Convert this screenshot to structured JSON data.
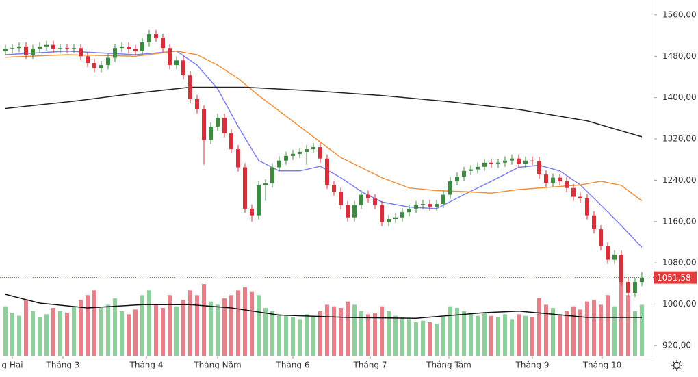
{
  "chart_data": {
    "type": "candlestick",
    "up_color": "#3d8b40",
    "down_color": "#d7303a",
    "volume_up_color": "#8fcf9c",
    "volume_down_color": "#e8808a",
    "x": [
      0,
      1,
      2,
      3,
      4,
      5,
      6,
      7,
      8,
      9,
      10,
      11,
      12,
      13,
      14,
      15,
      16,
      17,
      18,
      19,
      20,
      21,
      22,
      23,
      24,
      25,
      26,
      27,
      28,
      29,
      30,
      31,
      32,
      33,
      34,
      35,
      36,
      37,
      38,
      39,
      40,
      41,
      42,
      43,
      44,
      45,
      46,
      47,
      48,
      49,
      50,
      51,
      52,
      53,
      54,
      55,
      56,
      57,
      58,
      59,
      60,
      61,
      62,
      63,
      64,
      65,
      66,
      67,
      68,
      69,
      70,
      71,
      72,
      73,
      74,
      75,
      76,
      77,
      78,
      79,
      80,
      81,
      82,
      83,
      84,
      85,
      86,
      87,
      88,
      89,
      90,
      91,
      92,
      93
    ],
    "open": [
      1490,
      1494,
      1496,
      1499,
      1483,
      1494,
      1499,
      1502,
      1494,
      1496,
      1494,
      1496,
      1480,
      1467,
      1457,
      1463,
      1477,
      1496,
      1499,
      1494,
      1490,
      1507,
      1523,
      1516,
      1496,
      1463,
      1472,
      1443,
      1397,
      1377,
      1318,
      1344,
      1361,
      1331,
      1300,
      1265,
      1185,
      1172,
      1231,
      1234,
      1265,
      1278,
      1287,
      1291,
      1295,
      1300,
      1304,
      1282,
      1231,
      1218,
      1192,
      1168,
      1192,
      1212,
      1205,
      1192,
      1159,
      1165,
      1168,
      1178,
      1185,
      1192,
      1194,
      1189,
      1194,
      1212,
      1238,
      1247,
      1258,
      1261,
      1266,
      1274,
      1272,
      1274,
      1278,
      1282,
      1272,
      1278,
      1277,
      1251,
      1235,
      1245,
      1238,
      1225,
      1208,
      1205,
      1172,
      1145,
      1112,
      1086,
      1096,
      1043,
      1022,
      1043
    ],
    "high": [
      1502,
      1504,
      1507,
      1507,
      1502,
      1507,
      1510,
      1510,
      1504,
      1504,
      1504,
      1504,
      1488,
      1475,
      1471,
      1485,
      1504,
      1507,
      1507,
      1502,
      1515,
      1531,
      1531,
      1524,
      1504,
      1480,
      1480,
      1451,
      1405,
      1385,
      1352,
      1369,
      1369,
      1339,
      1308,
      1273,
      1193,
      1239,
      1242,
      1273,
      1286,
      1295,
      1299,
      1303,
      1308,
      1312,
      1312,
      1290,
      1239,
      1226,
      1200,
      1200,
      1220,
      1220,
      1213,
      1200,
      1173,
      1176,
      1186,
      1193,
      1200,
      1202,
      1202,
      1202,
      1220,
      1246,
      1255,
      1266,
      1269,
      1274,
      1282,
      1282,
      1282,
      1286,
      1290,
      1290,
      1286,
      1286,
      1285,
      1259,
      1253,
      1253,
      1246,
      1233,
      1216,
      1213,
      1180,
      1153,
      1120,
      1104,
      1104,
      1051,
      1051,
      1062
    ],
    "low": [
      1482,
      1486,
      1488,
      1475,
      1475,
      1486,
      1491,
      1486,
      1486,
      1486,
      1486,
      1472,
      1459,
      1449,
      1449,
      1455,
      1469,
      1488,
      1486,
      1482,
      1482,
      1499,
      1508,
      1488,
      1455,
      1455,
      1435,
      1389,
      1369,
      1270,
      1310,
      1336,
      1323,
      1292,
      1257,
      1177,
      1160,
      1164,
      1200,
      1226,
      1257,
      1270,
      1279,
      1283,
      1270,
      1292,
      1274,
      1223,
      1210,
      1184,
      1160,
      1160,
      1184,
      1197,
      1184,
      1151,
      1151,
      1157,
      1160,
      1170,
      1177,
      1184,
      1181,
      1181,
      1186,
      1204,
      1230,
      1239,
      1250,
      1253,
      1258,
      1264,
      1264,
      1266,
      1270,
      1264,
      1264,
      1269,
      1243,
      1227,
      1227,
      1230,
      1217,
      1200,
      1197,
      1164,
      1137,
      1104,
      1078,
      1078,
      1035,
      1014,
      1014,
      1035
    ],
    "close": [
      1494,
      1496,
      1499,
      1483,
      1494,
      1499,
      1502,
      1494,
      1496,
      1494,
      1496,
      1480,
      1467,
      1457,
      1463,
      1477,
      1496,
      1499,
      1494,
      1490,
      1507,
      1523,
      1516,
      1496,
      1463,
      1472,
      1443,
      1397,
      1377,
      1318,
      1344,
      1361,
      1331,
      1300,
      1265,
      1185,
      1172,
      1231,
      1234,
      1265,
      1278,
      1287,
      1291,
      1295,
      1300,
      1304,
      1282,
      1231,
      1218,
      1192,
      1168,
      1192,
      1212,
      1205,
      1192,
      1159,
      1165,
      1168,
      1178,
      1185,
      1192,
      1194,
      1189,
      1194,
      1212,
      1238,
      1247,
      1258,
      1261,
      1266,
      1274,
      1272,
      1274,
      1278,
      1282,
      1272,
      1278,
      1277,
      1251,
      1235,
      1245,
      1238,
      1225,
      1208,
      1205,
      1172,
      1145,
      1112,
      1086,
      1096,
      1043,
      1022,
      1043,
      1051.58
    ],
    "volume": [
      620,
      540,
      500,
      700,
      560,
      480,
      520,
      600,
      560,
      540,
      620,
      700,
      760,
      820,
      600,
      640,
      720,
      560,
      520,
      580,
      760,
      820,
      640,
      600,
      760,
      620,
      700,
      820,
      760,
      900,
      680,
      640,
      720,
      760,
      820,
      860,
      800,
      760,
      600,
      560,
      520,
      500,
      480,
      460,
      520,
      480,
      560,
      640,
      620,
      600,
      680,
      640,
      560,
      520,
      540,
      620,
      560,
      500,
      480,
      460,
      420,
      440,
      420,
      400,
      480,
      620,
      600,
      560,
      520,
      500,
      540,
      500,
      480,
      520,
      460,
      520,
      500,
      480,
      720,
      640,
      600,
      520,
      560,
      620,
      580,
      680,
      700,
      640,
      760,
      620,
      1000,
      760,
      560,
      640
    ],
    "vlim": [
      0,
      1200
    ],
    "ma_lines": [
      {
        "color": "#7b7ef0",
        "x": [
          0,
          9,
          19,
          25,
          28,
          31,
          34,
          37,
          40,
          43,
          46,
          49,
          52,
          55,
          59,
          63,
          67,
          71,
          75,
          78,
          81,
          84,
          87,
          90,
          93
        ],
        "values": [
          1483,
          1490,
          1483,
          1490,
          1463,
          1417,
          1344,
          1278,
          1258,
          1258,
          1267,
          1245,
          1218,
          1198,
          1188,
          1185,
          1212,
          1238,
          1265,
          1269,
          1258,
          1231,
          1192,
          1152,
          1110
        ]
      },
      {
        "color": "#f0913a",
        "x": [
          0,
          9,
          19,
          25,
          28,
          31,
          34,
          37,
          43,
          49,
          55,
          59,
          63,
          67,
          71,
          75,
          79,
          84,
          87,
          90,
          93
        ],
        "values": [
          1478,
          1483,
          1480,
          1490,
          1483,
          1463,
          1437,
          1404,
          1344,
          1284,
          1245,
          1225,
          1220,
          1218,
          1215,
          1222,
          1226,
          1231,
          1238,
          1230,
          1200
        ]
      },
      {
        "color": "#222222",
        "x": [
          0,
          10,
          20,
          27,
          35,
          45,
          55,
          65,
          75,
          85,
          93
        ],
        "values": [
          1379,
          1393,
          1410,
          1420,
          1420,
          1413,
          1404,
          1392,
          1377,
          1355,
          1324
        ]
      }
    ],
    "volume_ma": {
      "color": "#111111",
      "x": [
        0,
        5,
        12,
        20,
        27,
        33,
        40,
        50,
        60,
        70,
        75,
        80,
        85,
        93
      ],
      "values": [
        771,
        660,
        600,
        640,
        640,
        600,
        510,
        480,
        470,
        540,
        560,
        520,
        480,
        480
      ]
    },
    "last_price": {
      "value": 1051.58,
      "label": "1051,58"
    },
    "last_price_color": "#e03c3c",
    "xlim": [
      -0.8,
      93.7
    ],
    "xticks": [
      {
        "value": 1,
        "label": "g Hai"
      },
      {
        "value": 8.4,
        "label": "Tháng 3"
      },
      {
        "value": 20.6,
        "label": "Tháng 4"
      },
      {
        "value": 31,
        "label": "Tháng Năm"
      },
      {
        "value": 42,
        "label": "Tháng 6"
      },
      {
        "value": 53.3,
        "label": "Tháng 7"
      },
      {
        "value": 64.8,
        "label": "Tháng Tám"
      },
      {
        "value": 77,
        "label": "Tháng 9"
      },
      {
        "value": 87.2,
        "label": "Tháng 10"
      }
    ],
    "ylim": [
      900,
      1589
    ],
    "yticks": [
      {
        "value": 920,
        "label": "920,00"
      },
      {
        "value": 1000,
        "label": "1000,00"
      },
      {
        "value": 1080,
        "label": "1080,00"
      },
      {
        "value": 1160,
        "label": "1160,00"
      },
      {
        "value": 1240,
        "label": "1240,00"
      },
      {
        "value": 1320,
        "label": "1320,00"
      },
      {
        "value": 1400,
        "label": "1400,00"
      },
      {
        "value": 1480,
        "label": "1480,00"
      },
      {
        "value": 1560,
        "label": "1560,00"
      }
    ]
  }
}
